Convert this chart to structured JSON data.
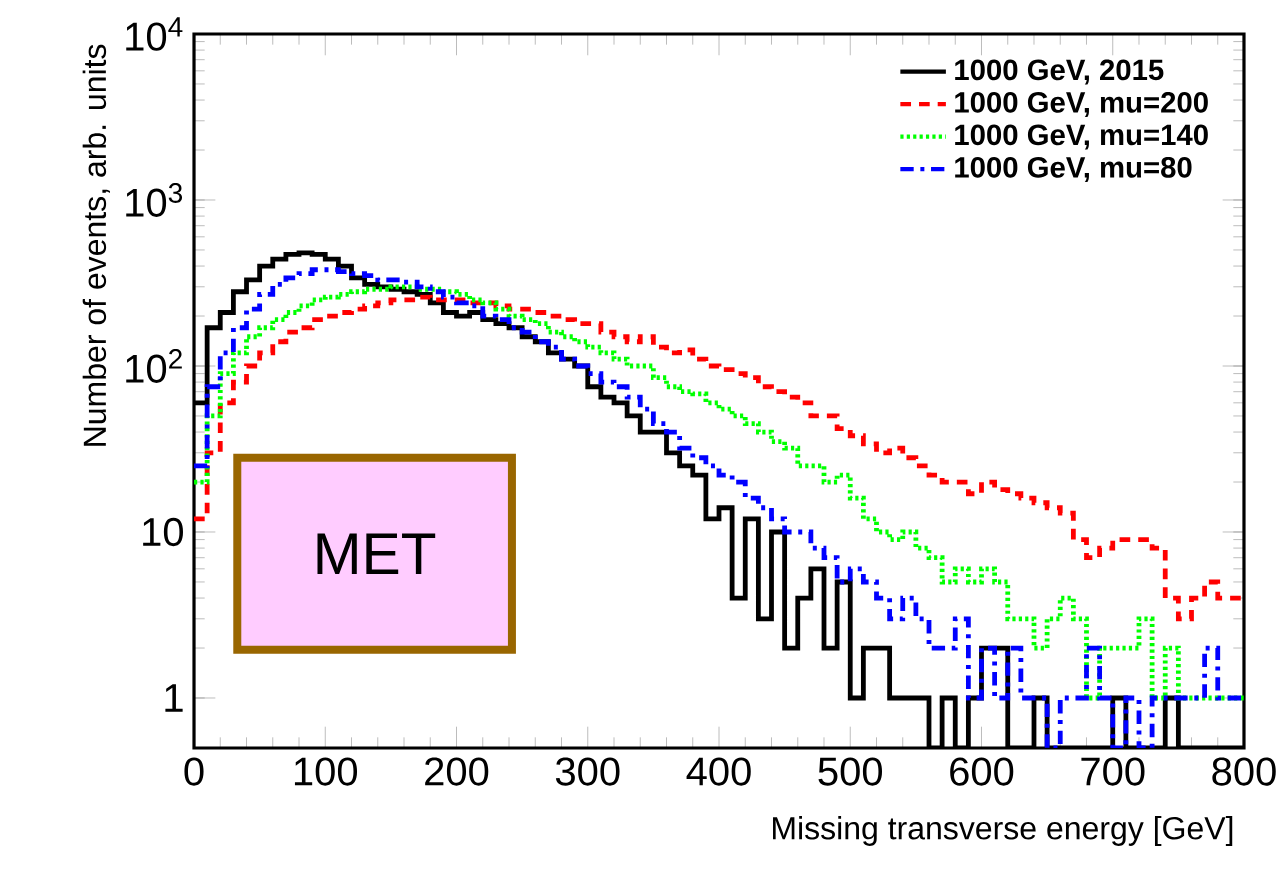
{
  "chart_data": {
    "type": "histogram",
    "xlabel": "Missing transverse energy [GeV]",
    "ylabel": "Number of events, arb. units",
    "annotations": [
      "MET"
    ],
    "bins": [
      0,
      10,
      20,
      30,
      40,
      50,
      60,
      70,
      80,
      90,
      100,
      110,
      120,
      130,
      140,
      150,
      160,
      170,
      180,
      190,
      200,
      210,
      220,
      230,
      240,
      250,
      260,
      270,
      280,
      290,
      300,
      310,
      320,
      330,
      340,
      350,
      360,
      370,
      380,
      390,
      400,
      410,
      420,
      430,
      440,
      450,
      460,
      470,
      480,
      490,
      500,
      510,
      520,
      530,
      540,
      550,
      560,
      570,
      580,
      590,
      600,
      610,
      620,
      630,
      640,
      650,
      660,
      670,
      680,
      690,
      700,
      710,
      720,
      730,
      740,
      750,
      760,
      770,
      780,
      790,
      800
    ],
    "series": [
      {
        "name": "1000 GeV, 2015",
        "color": "#000000",
        "line_style": "solid",
        "values": [
          60,
          170,
          210,
          280,
          330,
          400,
          440,
          470,
          480,
          470,
          440,
          400,
          340,
          310,
          300,
          290,
          280,
          270,
          240,
          210,
          200,
          210,
          190,
          180,
          170,
          150,
          140,
          120,
          110,
          100,
          75,
          65,
          60,
          50,
          40,
          40,
          30,
          25,
          22,
          12,
          14,
          4,
          12,
          3,
          10,
          2,
          4,
          6,
          2,
          5,
          1,
          2,
          2,
          1,
          1,
          1,
          null,
          1,
          null,
          1,
          2,
          2,
          null,
          null,
          1,
          null,
          null,
          null,
          null,
          null,
          1,
          null,
          null,
          null,
          1,
          null,
          null,
          null,
          null,
          null
        ]
      },
      {
        "name": "1000 GeV, mu=200",
        "color": "#ff0000",
        "line_style": "dashed",
        "values": [
          12,
          30,
          60,
          80,
          100,
          120,
          140,
          160,
          170,
          190,
          200,
          210,
          220,
          230,
          240,
          250,
          250,
          260,
          250,
          250,
          250,
          240,
          240,
          230,
          220,
          220,
          210,
          200,
          190,
          180,
          180,
          160,
          150,
          140,
          150,
          130,
          120,
          125,
          110,
          100,
          95,
          90,
          85,
          75,
          70,
          65,
          60,
          50,
          50,
          42,
          38,
          34,
          30,
          32,
          28,
          25,
          22,
          20,
          20,
          17,
          20,
          18,
          17,
          16,
          15,
          14,
          13,
          9,
          7,
          8,
          9,
          9,
          9,
          8,
          4,
          3,
          4,
          5,
          4,
          4
        ]
      },
      {
        "name": "1000 GeV, mu=140",
        "color": "#00ff00",
        "line_style": "dotted",
        "values": [
          20,
          50,
          90,
          120,
          150,
          170,
          190,
          210,
          230,
          250,
          260,
          270,
          280,
          290,
          290,
          300,
          300,
          290,
          290,
          280,
          270,
          250,
          240,
          220,
          200,
          190,
          180,
          160,
          150,
          140,
          130,
          120,
          110,
          100,
          100,
          85,
          75,
          70,
          68,
          60,
          55,
          50,
          45,
          40,
          35,
          32,
          25,
          25,
          20,
          22,
          16,
          12,
          10,
          9,
          10,
          8,
          7,
          5,
          6,
          5,
          6,
          5,
          3,
          3,
          2,
          3,
          4,
          3,
          1,
          2,
          2,
          2,
          3,
          1,
          2,
          1,
          1,
          1,
          1,
          1
        ]
      },
      {
        "name": "1000 GeV, mu=80",
        "color": "#0000ff",
        "line_style": "dashdot",
        "values": [
          25,
          75,
          120,
          170,
          220,
          270,
          310,
          340,
          360,
          380,
          380,
          370,
          360,
          350,
          330,
          330,
          320,
          300,
          280,
          260,
          240,
          230,
          200,
          190,
          170,
          160,
          140,
          130,
          110,
          100,
          90,
          80,
          75,
          65,
          55,
          45,
          40,
          32,
          28,
          25,
          22,
          20,
          16,
          14,
          12,
          10,
          10,
          8,
          7,
          5,
          6,
          5,
          4,
          3,
          4,
          3,
          2,
          2,
          3,
          1,
          2,
          1,
          2,
          1,
          1,
          null,
          1,
          1,
          2,
          1,
          null,
          1,
          null,
          1,
          1,
          1,
          1,
          2,
          1,
          1
        ]
      }
    ],
    "log": "y",
    "xlim": [
      0,
      800
    ],
    "ylim": [
      0.5,
      10000
    ],
    "xticks": [
      0,
      100,
      200,
      300,
      400,
      500,
      600,
      700,
      800
    ],
    "yticks": [
      1,
      10,
      {
        "value": 100,
        "label": "10$^{2}$"
      },
      {
        "value": 1000,
        "label": "10$^{3}$"
      },
      {
        "value": 10000,
        "label": "10$^{4}$"
      }
    ],
    "legend": "top right"
  }
}
